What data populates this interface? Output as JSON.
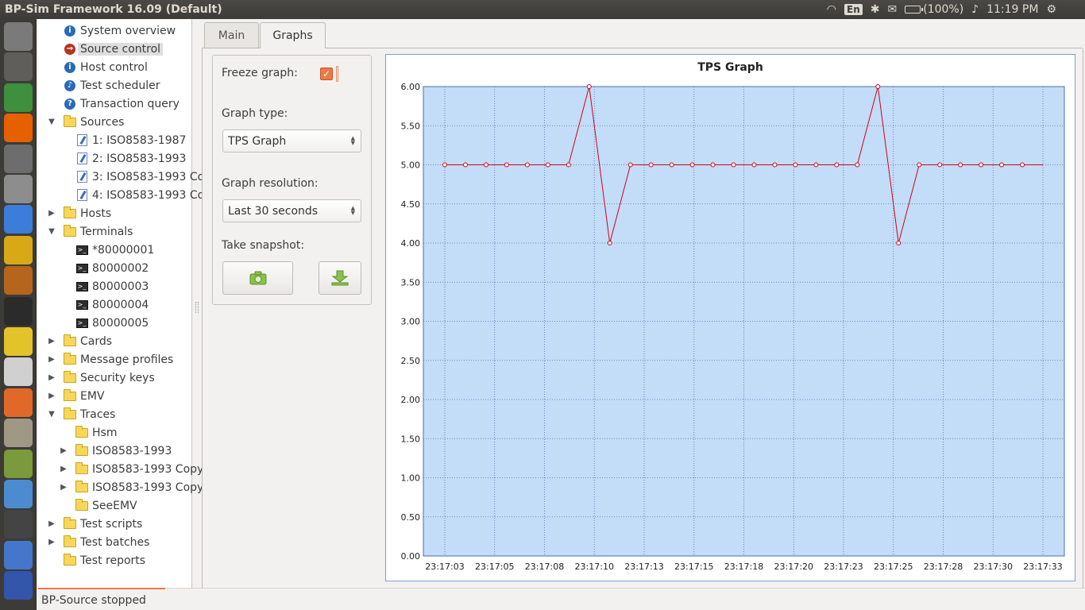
{
  "window": {
    "title": "BP-Sim Framework 16.09 (Default)"
  },
  "tray": {
    "keyboard": "En",
    "battery": "(100%)",
    "clock": "11:19 PM"
  },
  "launcher": {
    "apps": [
      {
        "name": "dash-icon",
        "color": "#7a7a7a"
      },
      {
        "name": "workspace-icon",
        "color": "#5f5e5a"
      },
      {
        "name": "globe-icon",
        "color": "#3e8f3e"
      },
      {
        "name": "firefox-icon",
        "color": "#e66000"
      },
      {
        "name": "calculator-icon",
        "color": "#6d6d6d"
      },
      {
        "name": "text-editor-icon",
        "color": "#8d8d8d"
      },
      {
        "name": "chromium-icon",
        "color": "#3b7dd8"
      },
      {
        "name": "teapot-icon",
        "color": "#d9a816"
      },
      {
        "name": "vlc-like-icon",
        "color": "#b5651d"
      },
      {
        "name": "terminal-icon",
        "color": "#2b2b2b"
      },
      {
        "name": "duck-icon",
        "color": "#e3c32a"
      },
      {
        "name": "ebook-icon",
        "color": "#d0d0d0"
      },
      {
        "name": "software-center-icon",
        "color": "#e2682a"
      },
      {
        "name": "archive-icon",
        "color": "#a09785"
      },
      {
        "name": "wizard-icon",
        "color": "#7a9a3c"
      },
      {
        "name": "tools-icon",
        "color": "#4c8bd0"
      },
      {
        "name": "tux-icon",
        "color": "#444444"
      },
      {
        "name": "network-icon",
        "color": "#4477cc"
      },
      {
        "name": "bottom-app-icon",
        "color": "#3355aa"
      }
    ]
  },
  "tree": {
    "items": [
      {
        "label": "System overview",
        "icon": "info",
        "level": 1,
        "expander": ""
      },
      {
        "label": "Source control",
        "icon": "source",
        "level": 1,
        "expander": "",
        "selected": true
      },
      {
        "label": "Host control",
        "icon": "info",
        "level": 1,
        "expander": ""
      },
      {
        "label": "Test scheduler",
        "icon": "bell",
        "level": 1,
        "expander": ""
      },
      {
        "label": "Transaction query",
        "icon": "query",
        "level": 1,
        "expander": ""
      },
      {
        "label": "Sources",
        "icon": "folder",
        "level": 1,
        "expander": "open"
      },
      {
        "label": "1: ISO8583-1987",
        "icon": "doc",
        "level": 2,
        "expander": ""
      },
      {
        "label": "2: ISO8583-1993",
        "icon": "doc",
        "level": 2,
        "expander": ""
      },
      {
        "label": "3: ISO8583-1993 Co",
        "icon": "doc",
        "level": 2,
        "expander": ""
      },
      {
        "label": "4: ISO8583-1993 Co",
        "icon": "doc",
        "level": 2,
        "expander": ""
      },
      {
        "label": "Hosts",
        "icon": "folder",
        "level": 1,
        "expander": "closed"
      },
      {
        "label": "Terminals",
        "icon": "folder",
        "level": 1,
        "expander": "open"
      },
      {
        "label": "*80000001",
        "icon": "term",
        "level": 2,
        "expander": ""
      },
      {
        "label": "80000002",
        "icon": "term",
        "level": 2,
        "expander": ""
      },
      {
        "label": "80000003",
        "icon": "term",
        "level": 2,
        "expander": ""
      },
      {
        "label": "80000004",
        "icon": "term",
        "level": 2,
        "expander": ""
      },
      {
        "label": "80000005",
        "icon": "term",
        "level": 2,
        "expander": ""
      },
      {
        "label": "Cards",
        "icon": "folder",
        "level": 1,
        "expander": "closed"
      },
      {
        "label": "Message profiles",
        "icon": "folder",
        "level": 1,
        "expander": "closed"
      },
      {
        "label": "Security keys",
        "icon": "folder",
        "level": 1,
        "expander": "closed"
      },
      {
        "label": "EMV",
        "icon": "folder",
        "level": 1,
        "expander": "closed"
      },
      {
        "label": "Traces",
        "icon": "folder",
        "level": 1,
        "expander": "open"
      },
      {
        "label": "Hsm",
        "icon": "folder",
        "level": 2,
        "expander": ""
      },
      {
        "label": "ISO8583-1993",
        "icon": "folder",
        "level": 2,
        "expander": "closed"
      },
      {
        "label": "ISO8583-1993 Copy",
        "icon": "folder",
        "level": 2,
        "expander": "closed"
      },
      {
        "label": "ISO8583-1993 Copy",
        "icon": "folder",
        "level": 2,
        "expander": "closed"
      },
      {
        "label": "SeeEMV",
        "icon": "folder",
        "level": 2,
        "expander": ""
      },
      {
        "label": "Test scripts",
        "icon": "folder",
        "level": 1,
        "expander": "closed"
      },
      {
        "label": "Test batches",
        "icon": "folder",
        "level": 1,
        "expander": "closed"
      },
      {
        "label": "Test reports",
        "icon": "folder",
        "level": 1,
        "expander": ""
      }
    ]
  },
  "tabs": {
    "main": "Main",
    "graphs": "Graphs"
  },
  "controls": {
    "freeze_label": "Freeze graph:",
    "freeze_checked": true,
    "graph_type_label": "Graph type:",
    "graph_type_value": "TPS Graph",
    "resolution_label": "Graph resolution:",
    "resolution_value": "Last 30 seconds",
    "snapshot_label": "Take snapshot:",
    "camera_icon": "camera-icon",
    "download_icon": "download-icon"
  },
  "status": {
    "text": "BP-Source stopped"
  },
  "chart_data": {
    "type": "line",
    "title": "TPS Graph",
    "xlabel": "",
    "ylabel": "",
    "ylim": [
      0,
      6
    ],
    "yticks": [
      0,
      0.5,
      1,
      1.5,
      2,
      2.5,
      3,
      3.5,
      4,
      4.5,
      5,
      5.5,
      6
    ],
    "ytick_labels": [
      "0.00",
      "0.50",
      "1.00",
      "1.50",
      "2.00",
      "2.50",
      "3.00",
      "3.50",
      "4.00",
      "4.50",
      "5.00",
      "5.50",
      "6.00"
    ],
    "xtick_labels": [
      "23:17:03",
      "23:17:05",
      "23:17:08",
      "23:17:10",
      "23:17:13",
      "23:17:15",
      "23:17:18",
      "23:17:20",
      "23:17:23",
      "23:17:25",
      "23:17:28",
      "23:17:30",
      "23:17:33"
    ],
    "grid": true,
    "series": [
      {
        "values": [
          5,
          5,
          5,
          5,
          5,
          5,
          5,
          6,
          4,
          5,
          5,
          5,
          5,
          5,
          5,
          5,
          5,
          5,
          5,
          5,
          5,
          6,
          4,
          5,
          5,
          5,
          5,
          5,
          5,
          5
        ],
        "color": "#d0021b"
      }
    ],
    "colors": {
      "plot_bg": "#c3dcf7",
      "grid": "#4d6fa8",
      "line": "#d0021b"
    }
  }
}
